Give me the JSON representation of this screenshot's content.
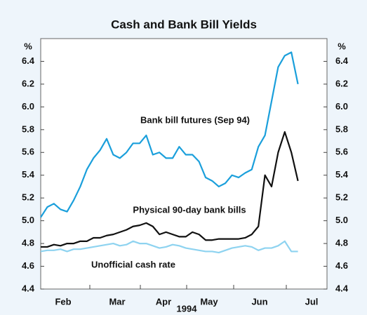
{
  "chart_data": {
    "type": "line",
    "title": "Cash and Bank Bill Yields",
    "y_unit": "%",
    "x_label": "1994",
    "xticks": [
      "Feb",
      "Mar",
      "Apr",
      "May",
      "Jun",
      "Jul"
    ],
    "ylim": [
      4.4,
      6.6
    ],
    "yticks": [
      {
        "value": 4.4,
        "label": "4.4"
      },
      {
        "value": 4.6,
        "label": "4.6"
      },
      {
        "value": 4.8,
        "label": "4.8"
      },
      {
        "value": 5.0,
        "label": "5.0"
      },
      {
        "value": 5.2,
        "label": "5.2"
      },
      {
        "value": 5.4,
        "label": "5.4"
      },
      {
        "value": 5.6,
        "label": "5.6"
      },
      {
        "value": 5.8,
        "label": "5.8"
      },
      {
        "value": 6.0,
        "label": "6.0"
      },
      {
        "value": 6.2,
        "label": "6.2"
      },
      {
        "value": 6.4,
        "label": "6.4"
      }
    ],
    "series": [
      {
        "name": "Bank bill futures (Sep 94)",
        "color": "#1a9fdb",
        "values": [
          5.03,
          5.12,
          5.15,
          5.1,
          5.08,
          5.18,
          5.3,
          5.45,
          5.55,
          5.62,
          5.72,
          5.58,
          5.55,
          5.6,
          5.68,
          5.68,
          5.75,
          5.58,
          5.6,
          5.55,
          5.55,
          5.65,
          5.58,
          5.58,
          5.52,
          5.38,
          5.35,
          5.3,
          5.33,
          5.4,
          5.38,
          5.42,
          5.45,
          5.65,
          5.75,
          6.05,
          6.35,
          6.45,
          6.48,
          6.2
        ]
      },
      {
        "name": "Physical 90-day bank bills",
        "color": "#111111",
        "values": [
          4.77,
          4.77,
          4.79,
          4.78,
          4.8,
          4.8,
          4.82,
          4.82,
          4.85,
          4.85,
          4.87,
          4.88,
          4.9,
          4.92,
          4.95,
          4.96,
          4.98,
          4.95,
          4.88,
          4.9,
          4.88,
          4.86,
          4.86,
          4.9,
          4.88,
          4.83,
          4.83,
          4.84,
          4.84,
          4.84,
          4.84,
          4.85,
          4.88,
          4.95,
          5.4,
          5.3,
          5.6,
          5.78,
          5.6,
          5.35
        ]
      },
      {
        "name": "Unofficial cash rate",
        "color": "#8ed3f0",
        "values": [
          4.73,
          4.74,
          4.74,
          4.75,
          4.73,
          4.75,
          4.75,
          4.76,
          4.77,
          4.78,
          4.79,
          4.8,
          4.78,
          4.79,
          4.82,
          4.8,
          4.8,
          4.78,
          4.76,
          4.77,
          4.79,
          4.78,
          4.76,
          4.75,
          4.74,
          4.73,
          4.73,
          4.72,
          4.74,
          4.76,
          4.77,
          4.78,
          4.77,
          4.74,
          4.76,
          4.76,
          4.78,
          4.82,
          4.73,
          4.73
        ]
      }
    ]
  }
}
